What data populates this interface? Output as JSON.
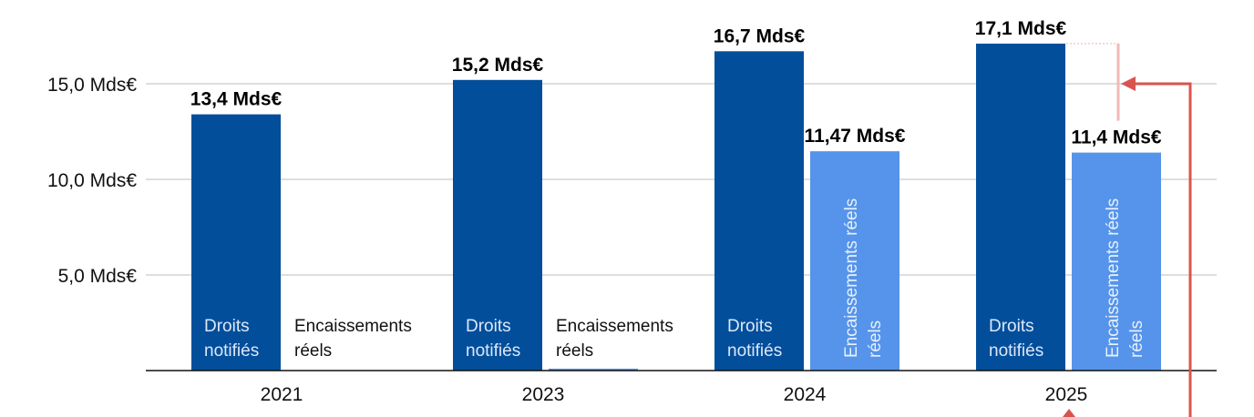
{
  "chart_data": {
    "type": "bar",
    "categories": [
      "2021",
      "2023",
      "2024",
      "2025"
    ],
    "ylim": [
      0,
      17.5
    ],
    "yticks": [
      {
        "value": 5,
        "label": "5,0 Mds€"
      },
      {
        "value": 10,
        "label": "10,0 Mds€"
      },
      {
        "value": 15,
        "label": "15,0 Mds€"
      }
    ],
    "grid": true,
    "series": [
      {
        "name": "Droits notifiés",
        "label_lines": [
          "Droits",
          "notifiés"
        ],
        "color": "#034e9b",
        "values": [
          13.4,
          15.2,
          16.7,
          17.1
        ],
        "data_labels": [
          "13,4 Mds€",
          "15,2 Mds€",
          "16,7 Mds€",
          "17,1 Mds€"
        ]
      },
      {
        "name": "Encaissements réels",
        "label_lines": [
          "Encaissements",
          "réels"
        ],
        "color": "#5594ea",
        "values": [
          0,
          0.1,
          11.47,
          11.4
        ],
        "data_labels": [
          "",
          "",
          "11,47 Mds€",
          "11,4 Mds€"
        ]
      }
    ],
    "annotation_color": "#d9534f"
  }
}
